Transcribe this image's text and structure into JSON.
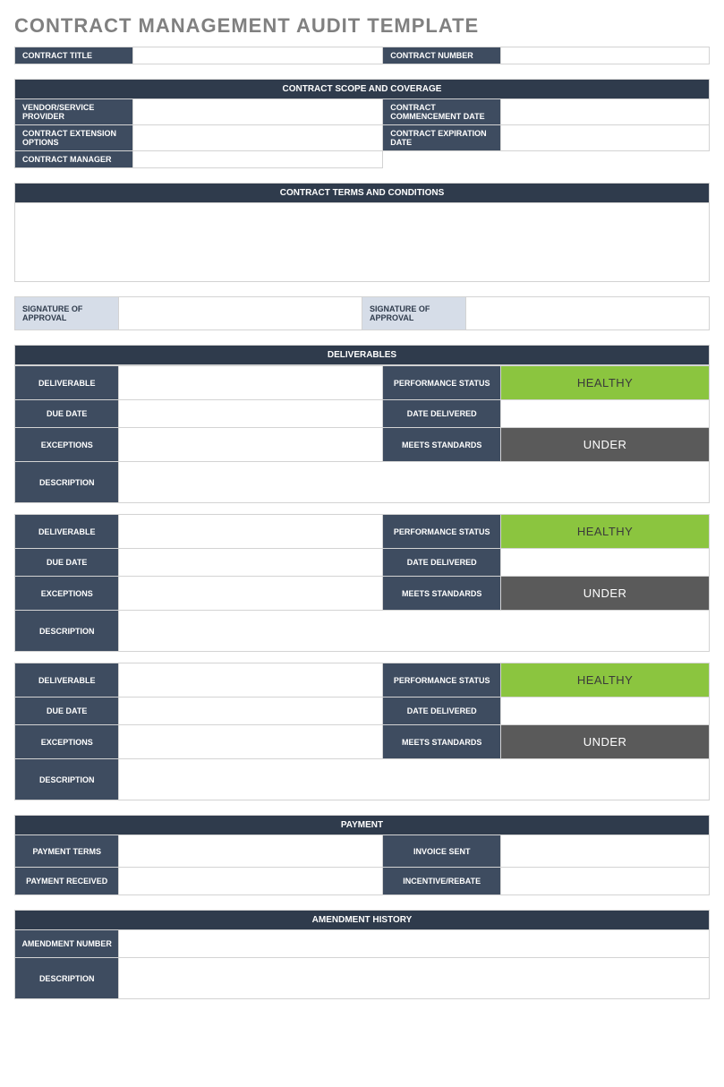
{
  "colors": {
    "header_dark": "#2f3b4c",
    "label_dark": "#3e4c60",
    "label_light": "#d6dde8",
    "title_gray": "#808080",
    "border": "#d3d3d3",
    "status_healthy_bg": "#8bc53f",
    "status_healthy_fg": "#3a3a3a",
    "status_under_bg": "#5a5a5a",
    "status_under_fg": "#ffffff"
  },
  "page_title": "CONTRACT MANAGEMENT AUDIT TEMPLATE",
  "top": {
    "contract_title_label": "CONTRACT TITLE",
    "contract_title_value": "",
    "contract_number_label": "CONTRACT NUMBER",
    "contract_number_value": ""
  },
  "scope": {
    "header": "CONTRACT SCOPE AND COVERAGE",
    "vendor_label": "VENDOR/SERVICE PROVIDER",
    "vendor_value": "",
    "commence_label": "CONTRACT COMMENCEMENT DATE",
    "commence_value": "",
    "ext_label": "CONTRACT EXTENSION OPTIONS",
    "ext_value": "",
    "expire_label": "CONTRACT EXPIRATION DATE",
    "expire_value": "",
    "manager_label": "CONTRACT MANAGER",
    "manager_value": ""
  },
  "terms": {
    "header": "CONTRACT TERMS AND CONDITIONS",
    "body": ""
  },
  "signatures": {
    "sig1_label": "SIGNATURE OF APPROVAL",
    "sig1_value": "",
    "sig2_label": "SIGNATURE OF APPROVAL",
    "sig2_value": ""
  },
  "deliverables": {
    "header": "DELIVERABLES",
    "labels": {
      "deliverable": "DELIVERABLE",
      "due_date": "DUE DATE",
      "exceptions": "EXCEPTIONS",
      "description": "DESCRIPTION",
      "perf_status": "PERFORMANCE STATUS",
      "date_delivered": "DATE DELIVERED",
      "meets_std": "MEETS STANDARDS"
    },
    "items": [
      {
        "deliverable": "",
        "due_date": "",
        "exceptions": "",
        "description": "",
        "perf_status": "HEALTHY",
        "perf_bg": "#8bc53f",
        "perf_fg": "#3a3a3a",
        "date_delivered": "",
        "meets_std": "UNDER",
        "meets_bg": "#5a5a5a",
        "meets_fg": "#ffffff"
      },
      {
        "deliverable": "",
        "due_date": "",
        "exceptions": "",
        "description": "",
        "perf_status": "HEALTHY",
        "perf_bg": "#8bc53f",
        "perf_fg": "#3a3a3a",
        "date_delivered": "",
        "meets_std": "UNDER",
        "meets_bg": "#5a5a5a",
        "meets_fg": "#ffffff"
      },
      {
        "deliverable": "",
        "due_date": "",
        "exceptions": "",
        "description": "",
        "perf_status": "HEALTHY",
        "perf_bg": "#8bc53f",
        "perf_fg": "#3a3a3a",
        "date_delivered": "",
        "meets_std": "UNDER",
        "meets_bg": "#5a5a5a",
        "meets_fg": "#ffffff"
      }
    ]
  },
  "payment": {
    "header": "PAYMENT",
    "terms_label": "PAYMENT TERMS",
    "terms_value": "",
    "invoice_label": "INVOICE SENT",
    "invoice_value": "",
    "received_label": "PAYMENT RECEIVED",
    "received_value": "",
    "incentive_label": "INCENTIVE/REBATE",
    "incentive_value": ""
  },
  "amendment": {
    "header": "AMENDMENT HISTORY",
    "number_label": "AMENDMENT NUMBER",
    "number_value": "",
    "desc_label": "DESCRIPTION",
    "desc_value": ""
  }
}
